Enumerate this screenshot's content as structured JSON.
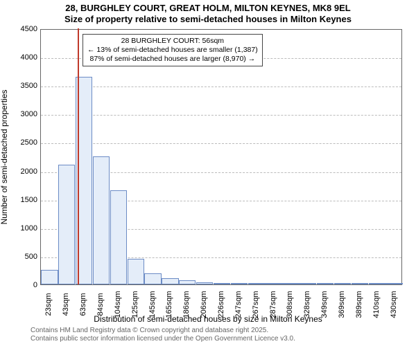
{
  "title_line1": "28, BURGHLEY COURT, GREAT HOLM, MILTON KEYNES, MK8 9EL",
  "title_line2": "Size of property relative to semi-detached houses in Milton Keynes",
  "chart": {
    "type": "histogram",
    "ylabel": "Number of semi-detached properties",
    "xlabel": "Distribution of semi-detached houses by size in Milton Keynes",
    "ylim": [
      0,
      4500
    ],
    "ytick_step": 500,
    "yticks": [
      0,
      500,
      1000,
      1500,
      2000,
      2500,
      3000,
      3500,
      4000,
      4500
    ],
    "background_color": "#ffffff",
    "grid_color": "#bbbbbb",
    "bar_fill": "#e4edf9",
    "bar_border": "#6b8bc5",
    "marker_line_color": "#c0392b",
    "marker_x_value": 56,
    "x_tick_labels": [
      "23sqm",
      "43sqm",
      "63sqm",
      "84sqm",
      "104sqm",
      "125sqm",
      "145sqm",
      "165sqm",
      "186sqm",
      "206sqm",
      "226sqm",
      "247sqm",
      "267sqm",
      "287sqm",
      "308sqm",
      "328sqm",
      "349sqm",
      "369sqm",
      "389sqm",
      "410sqm",
      "430sqm"
    ],
    "bars": [
      {
        "label": "23sqm",
        "value": 250
      },
      {
        "label": "43sqm",
        "value": 2100
      },
      {
        "label": "63sqm",
        "value": 3650
      },
      {
        "label": "84sqm",
        "value": 2250
      },
      {
        "label": "104sqm",
        "value": 1650
      },
      {
        "label": "125sqm",
        "value": 450
      },
      {
        "label": "145sqm",
        "value": 200
      },
      {
        "label": "165sqm",
        "value": 110
      },
      {
        "label": "186sqm",
        "value": 70
      },
      {
        "label": "206sqm",
        "value": 40
      },
      {
        "label": "226sqm",
        "value": 25
      },
      {
        "label": "247sqm",
        "value": 15
      },
      {
        "label": "267sqm",
        "value": 10
      },
      {
        "label": "287sqm",
        "value": 8
      },
      {
        "label": "308sqm",
        "value": 6
      },
      {
        "label": "328sqm",
        "value": 5
      },
      {
        "label": "349sqm",
        "value": 4
      },
      {
        "label": "369sqm",
        "value": 3
      },
      {
        "label": "389sqm",
        "value": 2
      },
      {
        "label": "410sqm",
        "value": 2
      },
      {
        "label": "430sqm",
        "value": 1
      }
    ],
    "annotation": {
      "line1": "28 BURGHLEY COURT: 56sqm",
      "line2": "← 13% of semi-detached houses are smaller (1,387)",
      "line3": "87% of semi-detached houses are larger (8,970) →",
      "border_color": "#444444",
      "bg_color": "#ffffff",
      "fontsize": 10.5
    }
  },
  "attribution": {
    "line1": "Contains HM Land Registry data © Crown copyright and database right 2025.",
    "line2": "Contains public sector information licensed under the Open Government Licence v3.0."
  }
}
